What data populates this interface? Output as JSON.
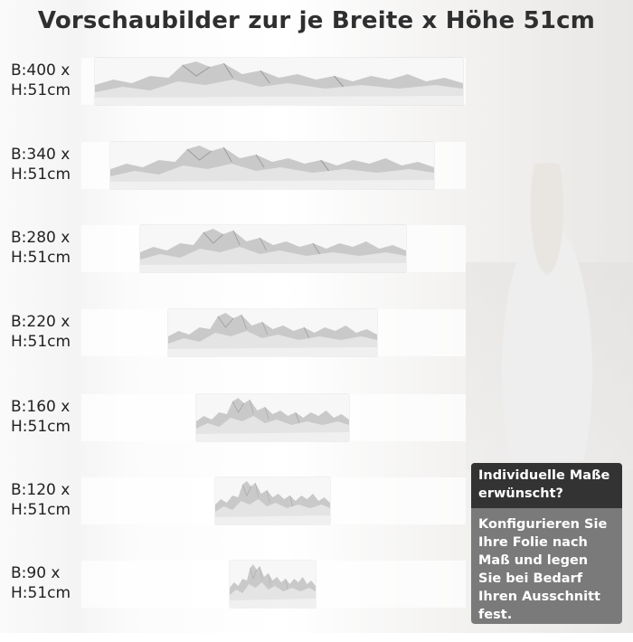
{
  "title": "Vorschaubilder zur je Breite x Höhe 51cm",
  "previews": [
    {
      "width_label": "B:400 x",
      "height_label": "H:51cm"
    },
    {
      "width_label": "B:340 x",
      "height_label": "H:51cm"
    },
    {
      "width_label": "B:280 x",
      "height_label": "H:51cm"
    },
    {
      "width_label": "B:220 x",
      "height_label": "H:51cm"
    },
    {
      "width_label": "B:160 x",
      "height_label": "H:51cm"
    },
    {
      "width_label": "B:120 x",
      "height_label": "H:51cm"
    },
    {
      "width_label": "B:90 x",
      "height_label": "H:51cm"
    }
  ],
  "info_box": {
    "heading": "Individuelle Maße erwünscht?",
    "body": "Konfigurieren Sie Ihre Folie nach Maß und legen Sie bei Bedarf Ihren Ausschnitt fest.",
    "heading_color": "#333333",
    "body_color": "#7a7a7a"
  },
  "image_subject": "mountain-panorama-grayscale"
}
